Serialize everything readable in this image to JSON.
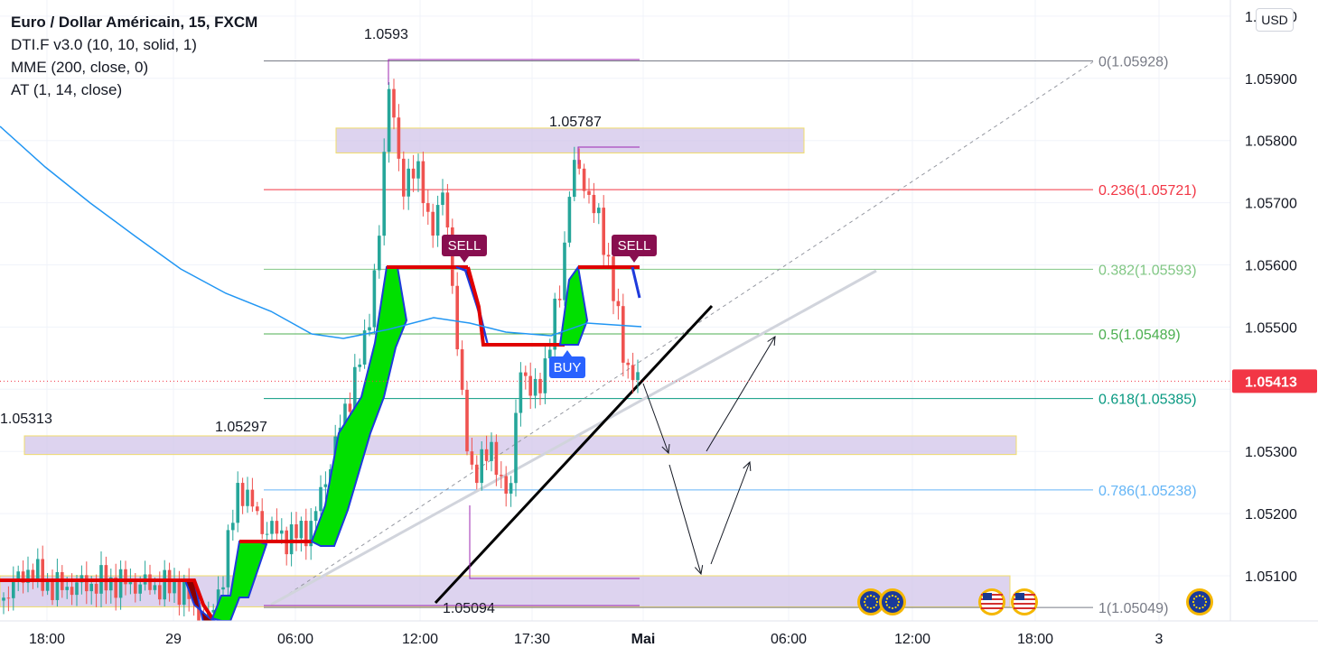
{
  "header": {
    "symbol": "Euro / Dollar Américain, 15, FXCM",
    "indicators": [
      "DTI.F v3.0 (10, 10, solid, 1)",
      "MME (200, close, 0)",
      "AT (1, 14, close)"
    ],
    "currency_button": "USD"
  },
  "colors": {
    "up": "#26a69a",
    "down": "#ef5350",
    "ema": "#2196f3",
    "zone": "#d1c4e9",
    "zone_border": "#f0dc6b",
    "sell_badge": "#880e4f",
    "buy_badge": "#2962ff",
    "price_tag": "#f23645"
  },
  "chart_data": {
    "type": "candlestick",
    "timeframe": "15",
    "y_axis": {
      "ticks": [
        "1.05100",
        "1.05200",
        "1.05300",
        "1.05400",
        "1.05500",
        "1.05600",
        "1.05700",
        "1.05800",
        "1.05900",
        "1.06000"
      ],
      "range": [
        1.0503,
        1.0603
      ]
    },
    "x_axis": {
      "ticks": [
        "18:00",
        "29",
        "06:00",
        "12:00",
        "17:30",
        "Mai",
        "06:00",
        "12:00",
        "18:00",
        "3"
      ]
    },
    "last_price": "1.05413",
    "fibonacci": [
      {
        "label": "0(1.05928)",
        "level": 1.05928,
        "color": "#787b86"
      },
      {
        "label": "0.236(1.05721)",
        "level": 1.05721,
        "color": "#f23645"
      },
      {
        "label": "0.382(1.05593)",
        "level": 1.05593,
        "color": "#81c784"
      },
      {
        "label": "0.5(1.05489)",
        "level": 1.05489,
        "color": "#4caf50"
      },
      {
        "label": "0.618(1.05385)",
        "level": 1.05385,
        "color": "#089981"
      },
      {
        "label": "0.786(1.05238)",
        "level": 1.05238,
        "color": "#64b5f6"
      },
      {
        "label": "1(1.05049)",
        "level": 1.05049,
        "color": "#787b86"
      }
    ],
    "price_annotations": [
      "1.0593",
      "1.05787",
      "1.05313",
      "1.05297",
      "1.05094"
    ],
    "signals": [
      {
        "type": "SELL"
      },
      {
        "type": "SELL"
      },
      {
        "type": "BUY"
      }
    ],
    "zones": [
      {
        "from": 1.0578,
        "to": 1.0582
      },
      {
        "from": 1.05295,
        "to": 1.05325
      },
      {
        "from": 1.0505,
        "to": 1.051
      }
    ],
    "ema_200": [
      1.0581,
      1.0572,
      1.0566,
      1.056,
      1.0555,
      1.0552,
      1.055,
      1.0549,
      1.0549,
      1.055,
      1.0551,
      1.0551,
      1.055,
      1.055,
      1.055
    ]
  }
}
